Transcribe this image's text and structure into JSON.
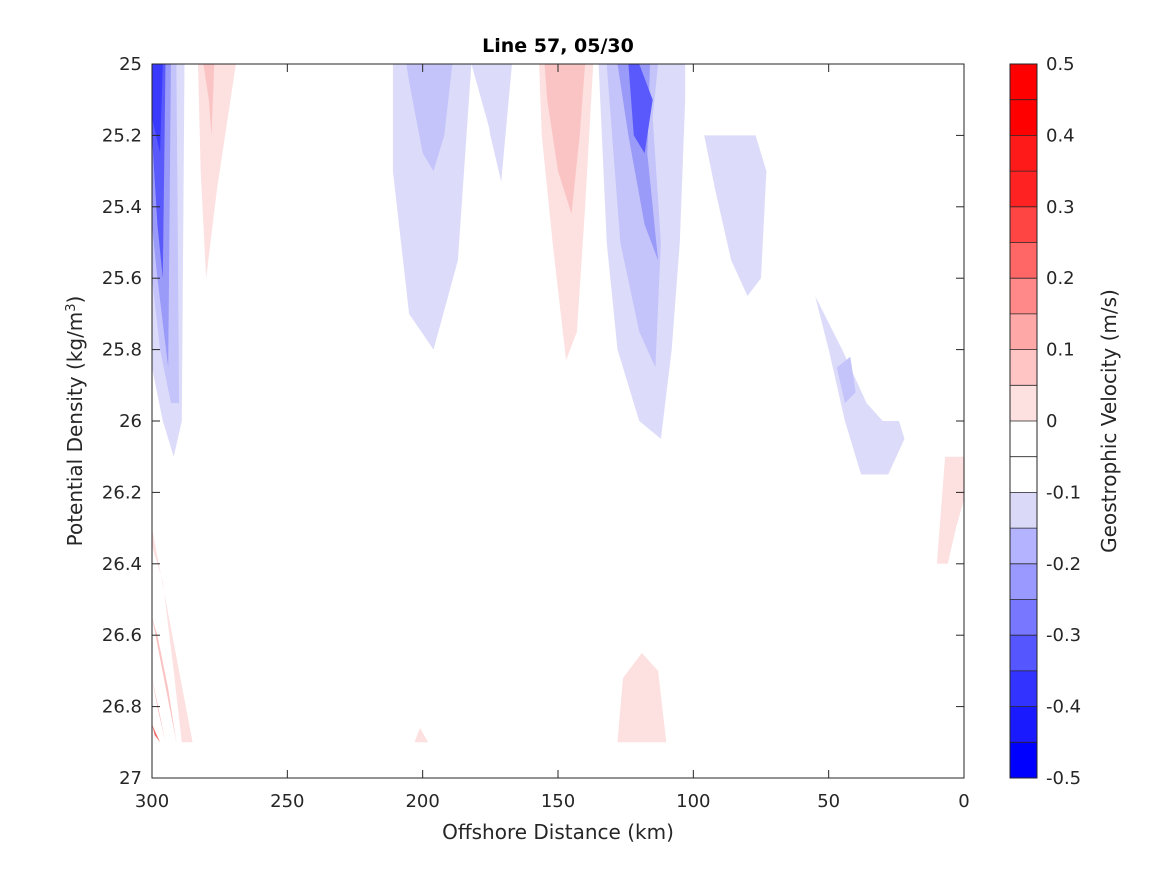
{
  "chart_data": {
    "type": "contour",
    "title": "Line 57, 05/30",
    "xlabel": "Offshore Distance (km)",
    "ylabel": "Potential Density (kg/m",
    "ylabel_sup": "3",
    "ylabel_close": ")",
    "xlim": [
      300,
      0
    ],
    "ylim": [
      25,
      27
    ],
    "x_reversed": true,
    "y_reversed": true,
    "xticks": [
      300,
      250,
      200,
      150,
      100,
      50,
      0
    ],
    "yticks": [
      25,
      25.2,
      25.4,
      25.6,
      25.8,
      26,
      26.2,
      26.4,
      26.6,
      26.8,
      27
    ],
    "ytick_labels": [
      "25",
      "25.2",
      "25.4",
      "25.6",
      "25.8",
      "26",
      "26.2",
      "26.4",
      "26.6",
      "26.8",
      "27"
    ],
    "colorbar": {
      "label": "Geostrophic Velocity (m/s)",
      "range": [
        -0.5,
        0.5
      ],
      "levels": [
        -0.5,
        -0.4,
        -0.3,
        -0.2,
        -0.1,
        0,
        0.1,
        0.2,
        0.3,
        0.4,
        0.5
      ],
      "tick_labels": [
        "-0.5",
        "-0.4",
        "-0.3",
        "-0.2",
        "-0.1",
        "0",
        "0.1",
        "0.2",
        "0.3",
        "0.4",
        "0.5"
      ],
      "band_colors": [
        "#0000ff",
        "#1a1aff",
        "#3333ff",
        "#5656ff",
        "#7777ff",
        "#9999ff",
        "#b3b3ff",
        "#dadaf8",
        "#ffffff",
        "#ffffff",
        "#fde0e0",
        "#ffc4c4",
        "#ffa8a8",
        "#ff8888",
        "#ff6666",
        "#ff4444",
        "#ff2222",
        "#ff1a1a",
        "#ff0000",
        "#ff0000"
      ]
    },
    "regions": [
      {
        "velocity": -0.1,
        "color": "#dcdcfa",
        "points": [
          [
            300,
            25
          ],
          [
            288,
            25
          ],
          [
            289,
            26
          ],
          [
            292,
            26.1
          ],
          [
            296,
            26.0
          ],
          [
            300,
            25.85
          ]
        ]
      },
      {
        "velocity": -0.2,
        "color": "#c4c4fa",
        "points": [
          [
            300,
            25
          ],
          [
            291,
            25
          ],
          [
            290,
            25.95
          ],
          [
            293,
            25.95
          ],
          [
            297,
            25.8
          ],
          [
            300,
            25.6
          ]
        ]
      },
      {
        "velocity": -0.3,
        "color": "#9a9af8",
        "points": [
          [
            300,
            25
          ],
          [
            293,
            25
          ],
          [
            294,
            25.85
          ],
          [
            298,
            25.6
          ],
          [
            300,
            25.45
          ]
        ]
      },
      {
        "velocity": -0.4,
        "color": "#5a5afc",
        "points": [
          [
            300,
            25
          ],
          [
            295,
            25
          ],
          [
            296,
            25.6
          ],
          [
            298,
            25.45
          ],
          [
            300,
            25.2
          ]
        ]
      },
      {
        "velocity": -0.5,
        "color": "#3a3aff",
        "points": [
          [
            300,
            25
          ],
          [
            296,
            25
          ],
          [
            297,
            25.25
          ],
          [
            300,
            25.15
          ]
        ]
      },
      {
        "velocity": 0.1,
        "color": "#fde0e0",
        "points": [
          [
            283,
            25
          ],
          [
            269,
            25
          ],
          [
            276,
            25.35
          ],
          [
            280,
            25.6
          ],
          [
            282,
            25.3
          ]
        ]
      },
      {
        "velocity": 0.2,
        "color": "#fbc4c4",
        "points": [
          [
            281,
            25
          ],
          [
            277,
            25
          ],
          [
            278,
            25.2
          ],
          [
            279,
            25.1
          ]
        ]
      },
      {
        "velocity": -0.1,
        "color": "#dcdcfa",
        "points": [
          [
            211,
            25
          ],
          [
            170,
            25
          ],
          [
            171,
            25.3
          ],
          [
            182,
            25
          ],
          [
            187,
            25.55
          ],
          [
            196,
            25.8
          ],
          [
            205,
            25.7
          ],
          [
            211,
            25.3
          ]
        ]
      },
      {
        "velocity": -0.2,
        "color": "#c4c4fa",
        "points": [
          [
            206,
            25
          ],
          [
            189,
            25
          ],
          [
            192,
            25.2
          ],
          [
            196,
            25.3
          ],
          [
            200,
            25.25
          ],
          [
            205,
            25.05
          ]
        ]
      },
      {
        "velocity": -0.1,
        "color": "#dcdcfa",
        "points": [
          [
            179,
            25
          ],
          [
            167,
            25
          ],
          [
            171,
            25.33
          ],
          [
            175,
            25.2
          ]
        ]
      },
      {
        "velocity": 0.1,
        "color": "#fde0e0",
        "points": [
          [
            157,
            25
          ],
          [
            137,
            25
          ],
          [
            140,
            25.4
          ],
          [
            143,
            25.75
          ],
          [
            147,
            25.83
          ],
          [
            152,
            25.5
          ],
          [
            156,
            25.2
          ]
        ]
      },
      {
        "velocity": 0.2,
        "color": "#fbc4c4",
        "points": [
          [
            155,
            25
          ],
          [
            140,
            25
          ],
          [
            142,
            25.2
          ],
          [
            145,
            25.42
          ],
          [
            150,
            25.3
          ],
          [
            154,
            25.1
          ]
        ]
      },
      {
        "velocity": -0.1,
        "color": "#dcdcfa",
        "points": [
          [
            135,
            25
          ],
          [
            103,
            25
          ],
          [
            103,
            25.1
          ],
          [
            105,
            25.5
          ],
          [
            108,
            25.8
          ],
          [
            112,
            26.05
          ],
          [
            120,
            26.0
          ],
          [
            128,
            25.8
          ],
          [
            132,
            25.5
          ]
        ]
      },
      {
        "velocity": -0.2,
        "color": "#c4c4fa",
        "points": [
          [
            132,
            25
          ],
          [
            113,
            25
          ],
          [
            115,
            25.15
          ],
          [
            112,
            25.5
          ],
          [
            114,
            25.85
          ],
          [
            120,
            25.75
          ],
          [
            127,
            25.5
          ],
          [
            130,
            25.2
          ]
        ]
      },
      {
        "velocity": -0.3,
        "color": "#9a9af8",
        "points": [
          [
            128,
            25
          ],
          [
            116,
            25
          ],
          [
            117,
            25.25
          ],
          [
            113,
            25.55
          ],
          [
            118,
            25.45
          ],
          [
            124,
            25.2
          ]
        ]
      },
      {
        "velocity": -0.4,
        "color": "#5a5afc",
        "points": [
          [
            124,
            25
          ],
          [
            120,
            25
          ],
          [
            115,
            25.1
          ],
          [
            118,
            25.25
          ],
          [
            122,
            25.2
          ]
        ]
      },
      {
        "velocity": -0.1,
        "color": "#dcdcfa",
        "points": [
          [
            96,
            25.2
          ],
          [
            77,
            25.2
          ],
          [
            73,
            25.3
          ],
          [
            75,
            25.6
          ],
          [
            80,
            25.65
          ],
          [
            86,
            25.55
          ],
          [
            92,
            25.35
          ]
        ]
      },
      {
        "velocity": -0.1,
        "color": "#dcdcfa",
        "points": [
          [
            55,
            25.65
          ],
          [
            50,
            25.8
          ],
          [
            44,
            26.0
          ],
          [
            38,
            26.15
          ],
          [
            28,
            26.15
          ],
          [
            22,
            26.05
          ],
          [
            24,
            26.0
          ],
          [
            30,
            26.0
          ],
          [
            36,
            25.95
          ],
          [
            45,
            25.8
          ]
        ]
      },
      {
        "velocity": -0.2,
        "color": "#c4c4fa",
        "points": [
          [
            47,
            25.85
          ],
          [
            44,
            25.95
          ],
          [
            40,
            25.92
          ],
          [
            42,
            25.82
          ]
        ]
      },
      {
        "velocity": 0.1,
        "color": "#fde0e0",
        "points": [
          [
            7,
            26.1
          ],
          [
            0,
            26.1
          ],
          [
            0,
            26.22
          ],
          [
            3,
            26.3
          ],
          [
            6,
            26.4
          ],
          [
            10,
            26.4
          ]
        ]
      },
      {
        "velocity": 0.1,
        "color": "#fde0e0",
        "points": [
          [
            300,
            26.3
          ],
          [
            285,
            26.9
          ],
          [
            289,
            26.9
          ],
          [
            292,
            26.7
          ],
          [
            296,
            26.45
          ],
          [
            300,
            26.35
          ]
        ]
      },
      {
        "velocity": 0.2,
        "color": "#fbc4c4",
        "points": [
          [
            300,
            26.55
          ],
          [
            291,
            26.9
          ],
          [
            294,
            26.75
          ],
          [
            298,
            26.6
          ]
        ]
      },
      {
        "velocity": 0.3,
        "color": "#f7a0a0",
        "points": [
          [
            300,
            26.72
          ],
          [
            295,
            26.9
          ],
          [
            298,
            26.8
          ]
        ]
      },
      {
        "velocity": 0.4,
        "color": "#f06a6a",
        "points": [
          [
            300,
            26.85
          ],
          [
            297,
            26.9
          ],
          [
            299,
            26.88
          ]
        ]
      },
      {
        "velocity": 0.1,
        "color": "#fde0e0",
        "points": [
          [
            128,
            26.9
          ],
          [
            126,
            26.72
          ],
          [
            119,
            26.65
          ],
          [
            113,
            26.7
          ],
          [
            110,
            26.9
          ]
        ]
      },
      {
        "velocity": 0.1,
        "color": "#fde0e0",
        "points": [
          [
            203,
            26.9
          ],
          [
            201,
            26.86
          ],
          [
            198,
            26.9
          ]
        ]
      }
    ]
  }
}
